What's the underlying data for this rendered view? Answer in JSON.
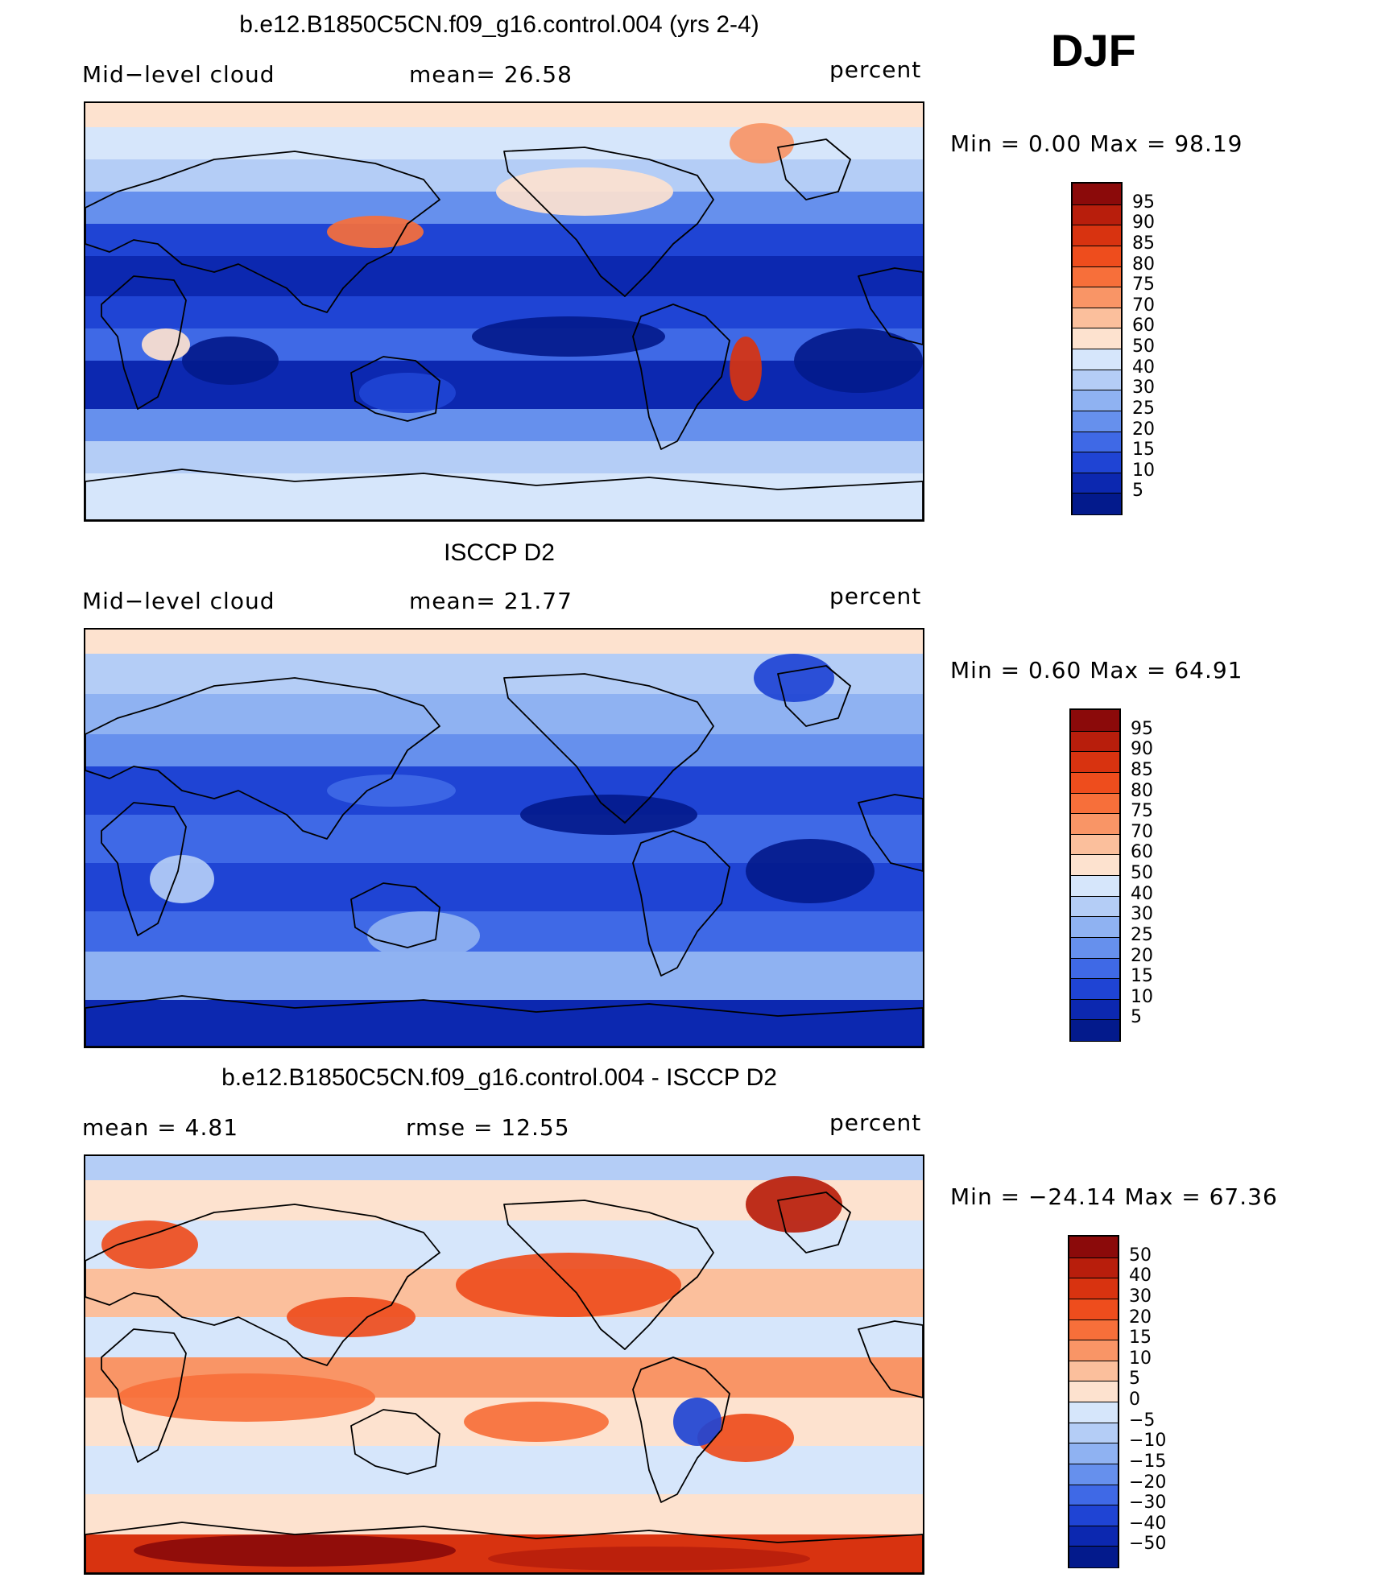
{
  "season": "DJF",
  "panels": [
    {
      "title": "b.e12.B1850C5CN.f09_g16.control.004 (yrs 2-4)",
      "left_label": "Mid−level cloud",
      "mid_label": "mean=   26.58",
      "right_label": "percent",
      "minmax": "Min =    0.00 Max =   98.19",
      "colorbar": {
        "labels": [
          "95",
          "90",
          "85",
          "80",
          "75",
          "70",
          "60",
          "50",
          "40",
          "30",
          "25",
          "20",
          "15",
          "10",
          "5"
        ],
        "colors": [
          "#8b0a0a",
          "#b81e0c",
          "#d83310",
          "#ee4d1d",
          "#f76f3a",
          "#f99566",
          "#fbbf9c",
          "#fde2cf",
          "#d6e6fb",
          "#b4cdf6",
          "#8fb2f2",
          "#6690ed",
          "#3f69e6",
          "#1f44d4",
          "#0c28b0",
          "#031a8c"
        ]
      },
      "chart_data": {
        "type": "heatmap",
        "variable": "Mid-level cloud",
        "units": "percent",
        "mean": 26.58,
        "min": 0.0,
        "max": 98.19,
        "contour_levels": [
          5,
          10,
          15,
          20,
          25,
          30,
          40,
          50,
          60,
          70,
          75,
          80,
          85,
          90,
          95
        ]
      },
      "palette_key": "full"
    },
    {
      "title": "ISCCP D2",
      "left_label": "Mid−level cloud",
      "mid_label": "mean=   21.77",
      "right_label": "percent",
      "minmax": "Min =    0.60 Max =   64.91",
      "colorbar": {
        "labels": [
          "95",
          "90",
          "85",
          "80",
          "75",
          "70",
          "60",
          "50",
          "40",
          "30",
          "25",
          "20",
          "15",
          "10",
          "5"
        ],
        "colors": [
          "#8b0a0a",
          "#b81e0c",
          "#d83310",
          "#ee4d1d",
          "#f76f3a",
          "#f99566",
          "#fbbf9c",
          "#fde2cf",
          "#d6e6fb",
          "#b4cdf6",
          "#8fb2f2",
          "#6690ed",
          "#3f69e6",
          "#1f44d4",
          "#0c28b0",
          "#031a8c"
        ]
      },
      "chart_data": {
        "type": "heatmap",
        "variable": "Mid-level cloud",
        "units": "percent",
        "mean": 21.77,
        "min": 0.6,
        "max": 64.91,
        "contour_levels": [
          5,
          10,
          15,
          20,
          25,
          30,
          40,
          50,
          60,
          70,
          75,
          80,
          85,
          90,
          95
        ]
      },
      "palette_key": "obs"
    },
    {
      "title": "b.e12.B1850C5CN.f09_g16.control.004 - ISCCP D2",
      "left_label": "mean =    4.81",
      "mid_label": "rmse =   12.55",
      "right_label": "percent",
      "minmax": "Min = −24.14 Max =   67.36",
      "colorbar": {
        "labels": [
          "50",
          "40",
          "30",
          "20",
          "15",
          "10",
          "5",
          "0",
          "−5",
          "−10",
          "−15",
          "−20",
          "−30",
          "−40",
          "−50"
        ],
        "colors": [
          "#8b0a0a",
          "#b81e0c",
          "#d83310",
          "#ee4d1d",
          "#f76f3a",
          "#f99566",
          "#fbbf9c",
          "#fde2cf",
          "#d6e6fb",
          "#b4cdf6",
          "#8fb2f2",
          "#6690ed",
          "#3f69e6",
          "#1f44d4",
          "#0c28b0",
          "#031a8c"
        ]
      },
      "chart_data": {
        "type": "heatmap",
        "variable": "Mid-level cloud difference",
        "units": "percent",
        "mean": 4.81,
        "rmse": 12.55,
        "min": -24.14,
        "max": 67.36,
        "contour_levels": [
          -50,
          -40,
          -30,
          -20,
          -15,
          -10,
          -5,
          0,
          5,
          10,
          15,
          20,
          30,
          40,
          50
        ]
      },
      "palette_key": "diff"
    }
  ]
}
